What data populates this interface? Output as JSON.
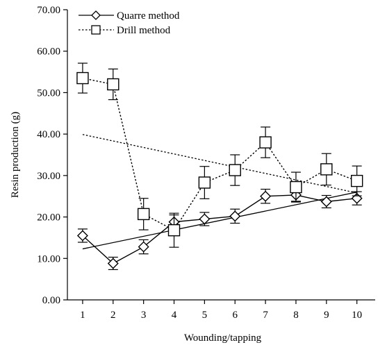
{
  "chart_data": {
    "type": "line",
    "title": "",
    "xlabel": "Wounding/tapping",
    "ylabel": "Resin production (g)",
    "x": [
      1,
      2,
      3,
      4,
      5,
      6,
      7,
      8,
      9,
      10
    ],
    "xlim": [
      0.5,
      10.6
    ],
    "ylim": [
      0,
      70
    ],
    "yticks": [
      "0.00",
      "10.00",
      "20.00",
      "30.00",
      "40.00",
      "50.00",
      "60.00",
      "70.00"
    ],
    "xticks": [
      "1",
      "2",
      "3",
      "4",
      "5",
      "6",
      "7",
      "8",
      "9",
      "10"
    ],
    "grid": false,
    "legend_position": "top-left",
    "series": [
      {
        "name": "Quarre method",
        "marker": "diamond",
        "line": "solid",
        "color": "#000000",
        "values": [
          15.5,
          8.8,
          12.8,
          18.8,
          19.5,
          20.2,
          25.0,
          25.3,
          23.7,
          24.5
        ],
        "error": [
          1.6,
          1.5,
          1.7,
          1.7,
          1.6,
          1.7,
          1.7,
          1.5,
          1.5,
          1.6
        ]
      },
      {
        "name": "Drill method",
        "marker": "square",
        "line": "dotted",
        "color": "#000000",
        "values": [
          53.5,
          52.0,
          20.7,
          16.8,
          28.3,
          31.3,
          38.0,
          27.2,
          31.5,
          28.7
        ],
        "error": [
          3.6,
          3.7,
          3.8,
          4.1,
          3.9,
          3.7,
          3.7,
          3.6,
          3.8,
          3.6
        ]
      }
    ],
    "trendlines": [
      {
        "series": "Quarre method",
        "line": "solid",
        "x": [
          1,
          10
        ],
        "y": [
          12.3,
          26.0
        ]
      },
      {
        "series": "Drill method",
        "line": "dotted",
        "x": [
          1,
          10
        ],
        "y": [
          39.9,
          25.8
        ]
      }
    ]
  }
}
